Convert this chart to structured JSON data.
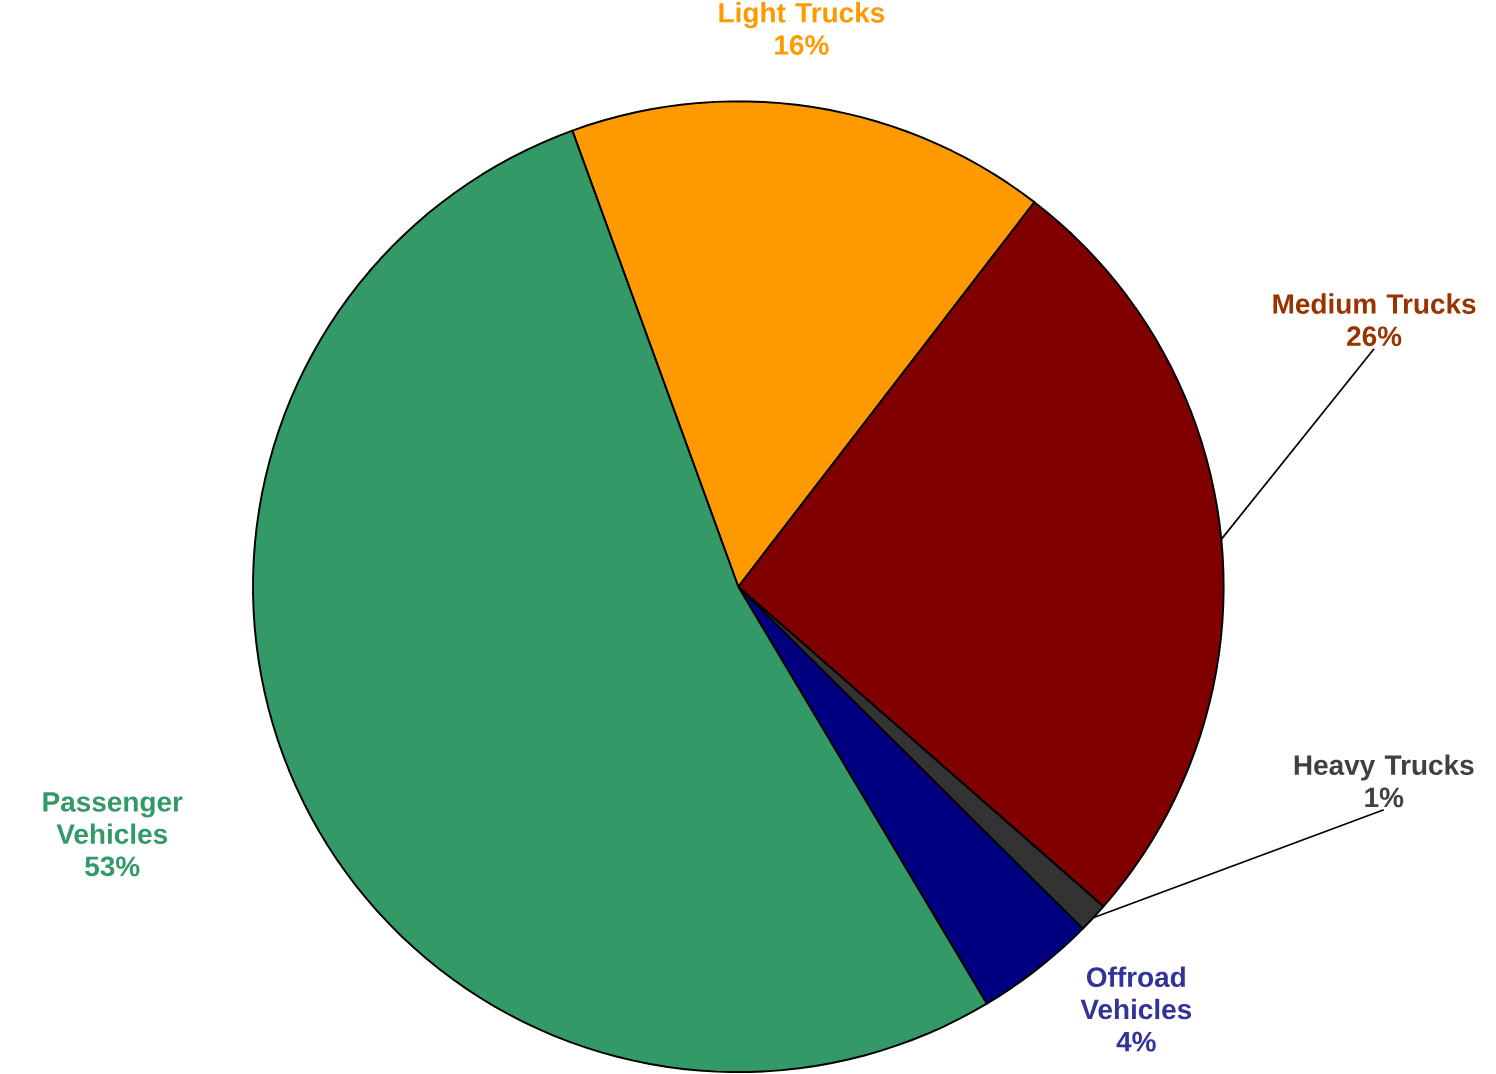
{
  "chart_data": {
    "type": "pie",
    "categories": [
      "Light Trucks",
      "Medium Trucks",
      "Heavy Trucks",
      "Offroad Vehicles",
      "Passenger Vehicles"
    ],
    "values": [
      16,
      26,
      1,
      4,
      53
    ],
    "colors": [
      "#ff9900",
      "#800000",
      "#333333",
      "#000080",
      "#339966"
    ],
    "value_labels": [
      "16%",
      "26%",
      "1%",
      "4%",
      "53%"
    ]
  }
}
